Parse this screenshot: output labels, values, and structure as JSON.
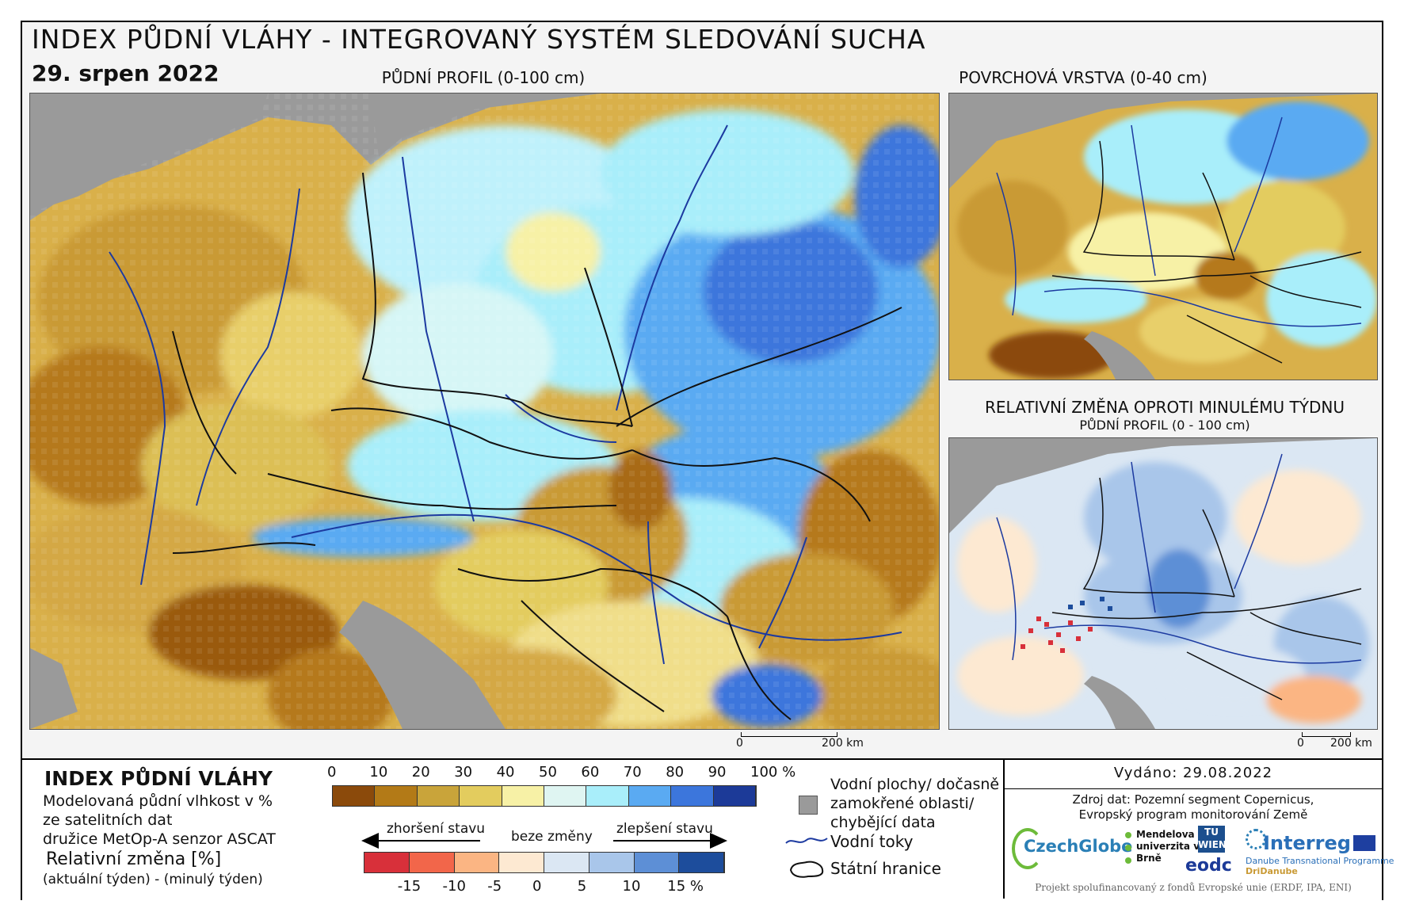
{
  "header": {
    "title": "INDEX PŮDNÍ VLÁHY - INTEGROVANÝ SYSTÉM SLEDOVÁNÍ SUCHA",
    "date": "29. srpen 2022"
  },
  "panels": {
    "main_label": "PŮDNÍ PROFIL (0-100 cm)",
    "surface_label": "POVRCHOVÁ VRSTVA (0-40 cm)",
    "change_label": "RELATIVNÍ ZMĚNA OPROTI MINULÉMU TÝDNU",
    "change_sublabel": "PŮDNÍ PROFIL (0 - 100 cm)"
  },
  "scalebar": {
    "start": "0",
    "end": "200 km"
  },
  "legend": {
    "heading": "INDEX PŮDNÍ VLÁHY",
    "desc1": "Modelovaná půdní vlhkost v %",
    "desc2": "ze satelitních dat",
    "desc3": "družice MetOp-A senzor ASCAT",
    "rel_heading": "Relativní změna [%]",
    "rel_desc": "(aktuální týden) - (minulý týden)",
    "moisture_ticks": [
      "0",
      "10",
      "20",
      "30",
      "40",
      "50",
      "60",
      "70",
      "80",
      "90",
      "100 %"
    ],
    "moisture_colors": [
      "#8b4a0b",
      "#b37a17",
      "#c9a43a",
      "#e3cc5e",
      "#f7f1a6",
      "#dff5f2",
      "#a9eefa",
      "#5aaaf2",
      "#3c76dc",
      "#1c3a98"
    ],
    "change_ticks": [
      "-15",
      "-10",
      "-5",
      "0",
      "5",
      "10",
      "15 %"
    ],
    "change_colors": [
      "#d8303a",
      "#f2664a",
      "#fbb583",
      "#fde9d2",
      "#dbe7f3",
      "#a9c6ea",
      "#5d8fd6",
      "#1d4d9c"
    ],
    "arrow_worse": "zhoršení stavu",
    "arrow_none": "beze změny",
    "arrow_better": "zlepšení stavu",
    "water_label": "Vodní plochy/ dočasně zamokřené oblasti/ chybějící data",
    "rivers_label": "Vodní toky",
    "borders_label": "Státní hranice"
  },
  "issued": "Vydáno: 29.08.2022",
  "source": {
    "line1": "Zdroj dat: Pozemní segment Copernicus,",
    "line2": "Evropský program monitorování Země"
  },
  "logos": {
    "czechglobe": "CzechGlobe",
    "mendelu": "Mendelova univerzita v Brně",
    "tuwien": "TU WIEN",
    "eodc": "eodc",
    "interreg": "Interreg",
    "interreg_sub1": "Danube Transnational Programme",
    "interreg_sub2": "DriDanube"
  },
  "footer": "Projekt spolufinancovaný z fondů Evropské unie (ERDF, IPA, ENI)"
}
